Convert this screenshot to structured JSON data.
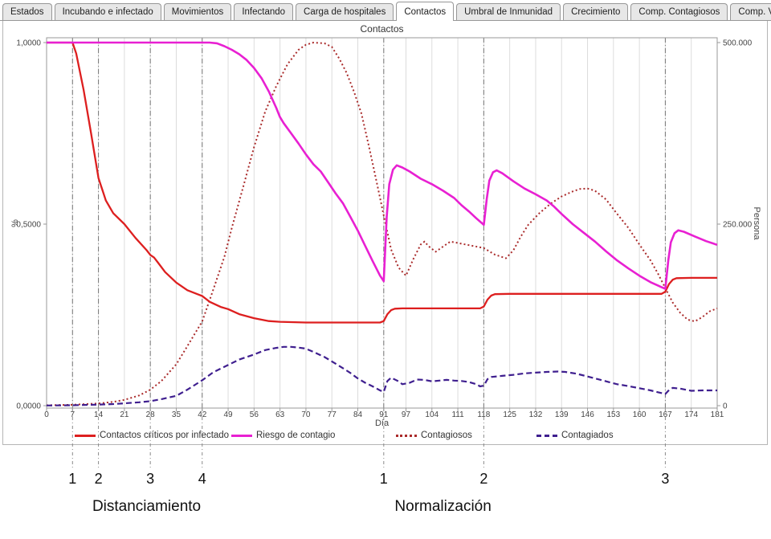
{
  "tabs": {
    "items": [
      {
        "label": "Estados",
        "active": false
      },
      {
        "label": "Incubando e infectado",
        "active": false
      },
      {
        "label": "Movimientos",
        "active": false
      },
      {
        "label": "Infectando",
        "active": false
      },
      {
        "label": "Carga de hospitales",
        "active": false
      },
      {
        "label": "Contactos",
        "active": true
      },
      {
        "label": "Umbral de Inmunidad",
        "active": false
      },
      {
        "label": "Crecimiento",
        "active": false
      },
      {
        "label": "Comp. Contagiosos",
        "active": false
      },
      {
        "label": "Comp. Victimas",
        "active": false
      }
    ]
  },
  "chart": {
    "title": "Contactos",
    "x_axis_label": "Día",
    "y_left_label": "%",
    "y_right_label": "Persona"
  },
  "chart_data": {
    "type": "line",
    "title": "Contactos",
    "xlabel": "Día",
    "ylabel_left": "%",
    "ylabel_right": "Persona",
    "xlim": [
      0,
      181
    ],
    "ylim_left": [
      0.0,
      1.0
    ],
    "ylim_right": [
      0,
      500000
    ],
    "grid": "vertical-only",
    "legend_position": "bottom",
    "x_ticks": [
      0,
      7,
      14,
      21,
      28,
      35,
      42,
      49,
      56,
      63,
      70,
      77,
      84,
      91,
      97,
      104,
      111,
      118,
      125,
      132,
      139,
      146,
      153,
      160,
      167,
      174,
      181
    ],
    "x_tick_labels": [
      "0",
      "7",
      "14",
      "21",
      "28",
      "35",
      "42",
      "49",
      "56",
      "63",
      "70",
      "77",
      "84",
      "91",
      "97",
      "104",
      "111",
      "118",
      "125",
      "132",
      "139",
      "146",
      "153",
      "160",
      "167",
      "174",
      "181"
    ],
    "y_left_ticks": [
      {
        "value": 1.0,
        "label": "1,0000"
      },
      {
        "value": 0.5,
        "label": "0,5000"
      },
      {
        "value": 0.0,
        "label": "0,0000"
      }
    ],
    "y_right_ticks": [
      {
        "value": 500000,
        "label": "500.000"
      },
      {
        "value": 250000,
        "label": "250.000"
      },
      {
        "value": 0,
        "label": "0"
      }
    ],
    "event_lines_days": [
      7,
      14,
      28,
      42,
      91,
      118,
      167
    ],
    "series": [
      {
        "name": "Contactos críticos por infectado",
        "axis": "left",
        "style": "solid",
        "color": "#dd1f1f",
        "points": [
          [
            0,
            1.0
          ],
          [
            7,
            1.0
          ],
          [
            8,
            0.97
          ],
          [
            10,
            0.87
          ],
          [
            12,
            0.75
          ],
          [
            14,
            0.627
          ],
          [
            16,
            0.565
          ],
          [
            18,
            0.53
          ],
          [
            21,
            0.5
          ],
          [
            24,
            0.462
          ],
          [
            27,
            0.428
          ],
          [
            28,
            0.415
          ],
          [
            29,
            0.408
          ],
          [
            30,
            0.395
          ],
          [
            32,
            0.368
          ],
          [
            35,
            0.339
          ],
          [
            38,
            0.318
          ],
          [
            41,
            0.306
          ],
          [
            42,
            0.302
          ],
          [
            44,
            0.286
          ],
          [
            47,
            0.272
          ],
          [
            49,
            0.266
          ],
          [
            52,
            0.252
          ],
          [
            56,
            0.241
          ],
          [
            60,
            0.233
          ],
          [
            63,
            0.231
          ],
          [
            70,
            0.229
          ],
          [
            80,
            0.229
          ],
          [
            90,
            0.229
          ],
          [
            91,
            0.233
          ],
          [
            92,
            0.252
          ],
          [
            93,
            0.263
          ],
          [
            94,
            0.267
          ],
          [
            96,
            0.268
          ],
          [
            105,
            0.268
          ],
          [
            117,
            0.268
          ],
          [
            118,
            0.273
          ],
          [
            119,
            0.292
          ],
          [
            120,
            0.303
          ],
          [
            121,
            0.307
          ],
          [
            125,
            0.308
          ],
          [
            140,
            0.308
          ],
          [
            160,
            0.308
          ],
          [
            166,
            0.308
          ],
          [
            167,
            0.314
          ],
          [
            168,
            0.335
          ],
          [
            169,
            0.347
          ],
          [
            170,
            0.351
          ],
          [
            174,
            0.352
          ],
          [
            181,
            0.352
          ]
        ]
      },
      {
        "name": "Riesgo de contagio",
        "axis": "left",
        "style": "solid",
        "color": "#e820d2",
        "points": [
          [
            0,
            1.0
          ],
          [
            44,
            1.0
          ],
          [
            46,
            0.998
          ],
          [
            48,
            0.99
          ],
          [
            50,
            0.98
          ],
          [
            52,
            0.968
          ],
          [
            54,
            0.952
          ],
          [
            56,
            0.93
          ],
          [
            58,
            0.902
          ],
          [
            60,
            0.865
          ],
          [
            62,
            0.82
          ],
          [
            63,
            0.795
          ],
          [
            64,
            0.778
          ],
          [
            66,
            0.75
          ],
          [
            68,
            0.722
          ],
          [
            70,
            0.692
          ],
          [
            72,
            0.665
          ],
          [
            74,
            0.645
          ],
          [
            76,
            0.615
          ],
          [
            78,
            0.585
          ],
          [
            80,
            0.557
          ],
          [
            82,
            0.52
          ],
          [
            84,
            0.482
          ],
          [
            86,
            0.44
          ],
          [
            88,
            0.398
          ],
          [
            90,
            0.358
          ],
          [
            91,
            0.343
          ],
          [
            91.8,
            0.52
          ],
          [
            92.5,
            0.61
          ],
          [
            93.5,
            0.65
          ],
          [
            94.5,
            0.662
          ],
          [
            96,
            0.656
          ],
          [
            98,
            0.645
          ],
          [
            101,
            0.625
          ],
          [
            104,
            0.61
          ],
          [
            107,
            0.592
          ],
          [
            110,
            0.572
          ],
          [
            112,
            0.552
          ],
          [
            114,
            0.535
          ],
          [
            116,
            0.516
          ],
          [
            118,
            0.498
          ],
          [
            118.8,
            0.57
          ],
          [
            119.5,
            0.62
          ],
          [
            120.5,
            0.643
          ],
          [
            121.5,
            0.648
          ],
          [
            123,
            0.64
          ],
          [
            126,
            0.618
          ],
          [
            129,
            0.598
          ],
          [
            132,
            0.582
          ],
          [
            135,
            0.565
          ],
          [
            137,
            0.548
          ],
          [
            139,
            0.528
          ],
          [
            142,
            0.5
          ],
          [
            145,
            0.476
          ],
          [
            148,
            0.452
          ],
          [
            151,
            0.425
          ],
          [
            154,
            0.4
          ],
          [
            157,
            0.378
          ],
          [
            160,
            0.358
          ],
          [
            163,
            0.34
          ],
          [
            165,
            0.331
          ],
          [
            166,
            0.326
          ],
          [
            167,
            0.322
          ],
          [
            167.8,
            0.4
          ],
          [
            168.5,
            0.45
          ],
          [
            169.5,
            0.475
          ],
          [
            170.5,
            0.483
          ],
          [
            172,
            0.479
          ],
          [
            175,
            0.466
          ],
          [
            178,
            0.453
          ],
          [
            181,
            0.443
          ]
        ]
      },
      {
        "name": "Contagiosos",
        "axis": "right",
        "style": "dotted",
        "color": "#aa2b2b",
        "points": [
          [
            0,
            500
          ],
          [
            7,
            1200
          ],
          [
            14,
            3000
          ],
          [
            18,
            5200
          ],
          [
            21,
            8000
          ],
          [
            25,
            14000
          ],
          [
            28,
            22000
          ],
          [
            31,
            34000
          ],
          [
            35,
            57000
          ],
          [
            38,
            82000
          ],
          [
            42,
            116000
          ],
          [
            45,
            160000
          ],
          [
            48,
            205000
          ],
          [
            50,
            245000
          ],
          [
            53,
            300000
          ],
          [
            56,
            356000
          ],
          [
            59,
            405000
          ],
          [
            62,
            440000
          ],
          [
            65,
            470000
          ],
          [
            68,
            490000
          ],
          [
            70,
            497000
          ],
          [
            72,
            500000
          ],
          [
            75,
            499000
          ],
          [
            77,
            494000
          ],
          [
            79,
            478000
          ],
          [
            81,
            458000
          ],
          [
            83,
            432000
          ],
          [
            85,
            402000
          ],
          [
            87,
            357000
          ],
          [
            89,
            310000
          ],
          [
            91,
            262000
          ],
          [
            93,
            215000
          ],
          [
            95,
            190000
          ],
          [
            97,
            179000
          ],
          [
            99,
            202000
          ],
          [
            101,
            222000
          ],
          [
            102,
            226000
          ],
          [
            103,
            220000
          ],
          [
            105,
            212000
          ],
          [
            107,
            219000
          ],
          [
            109,
            226000
          ],
          [
            111,
            224000
          ],
          [
            114,
            221000
          ],
          [
            118,
            217000
          ],
          [
            121,
            208000
          ],
          [
            124,
            203000
          ],
          [
            126,
            214000
          ],
          [
            128,
            233000
          ],
          [
            130,
            249000
          ],
          [
            133,
            265000
          ],
          [
            136,
            278000
          ],
          [
            139,
            288000
          ],
          [
            142,
            295000
          ],
          [
            144,
            298500
          ],
          [
            146,
            299000
          ],
          [
            148,
            296000
          ],
          [
            151,
            284000
          ],
          [
            154,
            264000
          ],
          [
            157,
            245000
          ],
          [
            160,
            222000
          ],
          [
            163,
            200000
          ],
          [
            165,
            182000
          ],
          [
            167,
            162000
          ],
          [
            169,
            142000
          ],
          [
            171,
            128000
          ],
          [
            173,
            118500
          ],
          [
            175,
            116000
          ],
          [
            177,
            122000
          ],
          [
            179,
            130000
          ],
          [
            181,
            134000
          ]
        ]
      },
      {
        "name": "Contagiados",
        "axis": "right",
        "style": "dashed",
        "color": "#3f1f8f",
        "points": [
          [
            0,
            200
          ],
          [
            7,
            600
          ],
          [
            14,
            1400
          ],
          [
            18,
            2200
          ],
          [
            21,
            3200
          ],
          [
            25,
            4600
          ],
          [
            28,
            6200
          ],
          [
            31,
            9000
          ],
          [
            35,
            13500
          ],
          [
            38,
            22000
          ],
          [
            42,
            35000
          ],
          [
            45,
            46000
          ],
          [
            49,
            56000
          ],
          [
            52,
            63500
          ],
          [
            56,
            70500
          ],
          [
            59,
            76500
          ],
          [
            62,
            79500
          ],
          [
            64,
            81000
          ],
          [
            66,
            81000
          ],
          [
            68,
            80000
          ],
          [
            70,
            78500
          ],
          [
            72,
            74000
          ],
          [
            75,
            67000
          ],
          [
            77,
            61000
          ],
          [
            80,
            51500
          ],
          [
            82,
            45000
          ],
          [
            84,
            37500
          ],
          [
            86,
            31500
          ],
          [
            88,
            26500
          ],
          [
            90,
            21000
          ],
          [
            91,
            19000
          ],
          [
            92,
            34000
          ],
          [
            93,
            38500
          ],
          [
            95,
            33500
          ],
          [
            96,
            29500
          ],
          [
            98,
            31500
          ],
          [
            100,
            36000
          ],
          [
            102,
            35500
          ],
          [
            104,
            33500
          ],
          [
            106,
            34500
          ],
          [
            108,
            35500
          ],
          [
            110,
            34500
          ],
          [
            112,
            34000
          ],
          [
            114,
            32500
          ],
          [
            116,
            29500
          ],
          [
            117,
            26500
          ],
          [
            118,
            27500
          ],
          [
            119,
            36500
          ],
          [
            120,
            39500
          ],
          [
            123,
            41000
          ],
          [
            126,
            42500
          ],
          [
            129,
            44500
          ],
          [
            132,
            45500
          ],
          [
            135,
            46500
          ],
          [
            138,
            47000
          ],
          [
            140,
            46500
          ],
          [
            143,
            44000
          ],
          [
            145,
            41500
          ],
          [
            148,
            37500
          ],
          [
            151,
            33500
          ],
          [
            154,
            29500
          ],
          [
            157,
            27000
          ],
          [
            160,
            24000
          ],
          [
            163,
            21000
          ],
          [
            165,
            18500
          ],
          [
            167,
            16000
          ],
          [
            168,
            21500
          ],
          [
            169,
            24500
          ],
          [
            171,
            23500
          ],
          [
            174,
            20500
          ],
          [
            177,
            21000
          ],
          [
            181,
            21000
          ]
        ]
      }
    ]
  },
  "annotations": {
    "events": [
      {
        "label": "1",
        "day": 7
      },
      {
        "label": "2",
        "day": 14
      },
      {
        "label": "3",
        "day": 28
      },
      {
        "label": "4",
        "day": 42
      },
      {
        "label": "1",
        "day": 91
      },
      {
        "label": "2",
        "day": 118
      },
      {
        "label": "3",
        "day": 167
      }
    ],
    "phases": [
      {
        "label": "Distanciamiento",
        "center_day": 27
      },
      {
        "label": "Normalización",
        "center_day": 107
      }
    ]
  }
}
